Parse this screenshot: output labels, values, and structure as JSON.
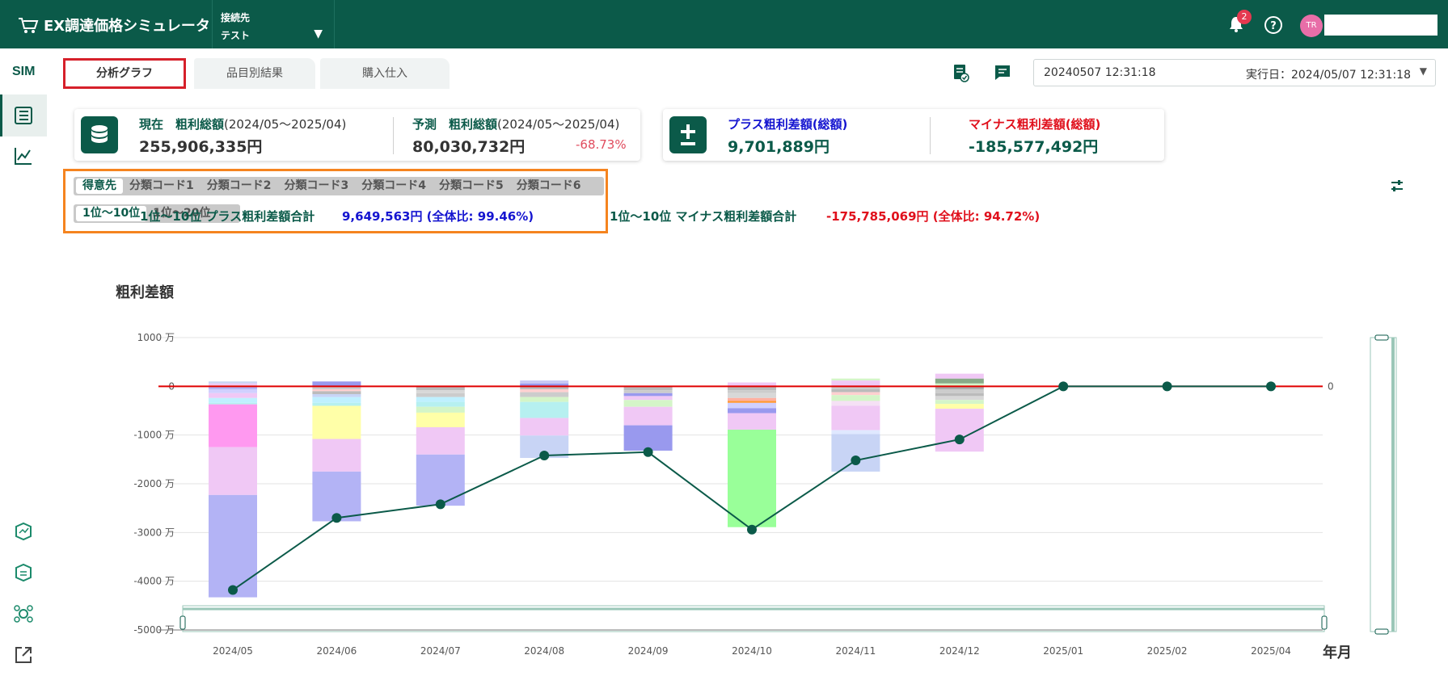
{
  "app": {
    "title": "EX調達価格シミュレータ"
  },
  "connection": {
    "label": "接続先",
    "value": "テスト"
  },
  "header": {
    "notification_count": "2",
    "avatar_initials": "TR"
  },
  "sidebar": {
    "logo": "SIM"
  },
  "tabs": [
    {
      "label": "分析グラフ",
      "active": true
    },
    {
      "label": "品目別結果",
      "active": false
    },
    {
      "label": "購入仕入",
      "active": false
    }
  ],
  "datetime_select": {
    "left": "20240507 12:31:18",
    "right": "実行日：2024/05/07 12:31:18"
  },
  "cards": {
    "current": {
      "label_bold": "現在　粗利総額",
      "label_period": "(2024/05～2025/04)",
      "value": "255,906,335円"
    },
    "forecast": {
      "label_bold": "予測　粗利総額",
      "label_period": "(2024/05～2025/04)",
      "value": "80,030,732円",
      "pct": "-68.73%"
    },
    "plus": {
      "label": "プラス粗利差額(総額)",
      "value": "9,701,889円"
    },
    "minus": {
      "label": "マイナス粗利差額(総額)",
      "value": "-185,577,492円"
    }
  },
  "filter": {
    "groups": [
      "得意先",
      "分類コード1",
      "分類コード2",
      "分類コード3",
      "分類コード4",
      "分類コード5",
      "分類コード6"
    ],
    "ranges": [
      "1位～10位",
      "1位～20位"
    ]
  },
  "summary": {
    "plus_label": "1位～10位 プラス粗利差額合計",
    "plus_value": "9,649,563円 (全体比: 99.46%)",
    "minus_label": "1位～10位 マイナス粗利差額合計",
    "minus_value": "-175,785,069円 (全体比: 94.72%)"
  },
  "chart_data": {
    "type": "bar",
    "ylabel": "粗利差額",
    "xlabel": "年月",
    "ylim": [
      -5000,
      1000
    ],
    "ytick_labels": [
      "1000 万",
      "0",
      "-1000 万",
      "-2000 万",
      "-3000 万",
      "-4000 万",
      "-5000 万"
    ],
    "right_zero_label": "0",
    "categories": [
      "2024/05",
      "2024/06",
      "2024/07",
      "2024/08",
      "2024/09",
      "2024/10",
      "2024/11",
      "2024/12",
      "2025/01",
      "2025/02",
      "2025/04"
    ],
    "stacks": [
      {
        "pos": [
          [
            20,
            "#d4f5c8"
          ],
          [
            40,
            "#f0c8f5"
          ],
          [
            40,
            "#c8d4f5"
          ]
        ],
        "neg": [
          [
            60,
            "#b3b3f5"
          ],
          [
            80,
            "#d0d0ff"
          ],
          [
            100,
            "#f0c8f5"
          ],
          [
            100,
            "#bff0ff"
          ],
          [
            30,
            "#b6f0f0"
          ],
          [
            880,
            "#ff99f0"
          ],
          [
            980,
            "#f0c8f5"
          ],
          [
            2100,
            "#b3b3f5"
          ]
        ]
      },
      {
        "pos": [
          [
            100,
            "#9999ee"
          ]
        ],
        "neg": [
          [
            60,
            "#cccccc"
          ],
          [
            40,
            "#ffd0d0"
          ],
          [
            60,
            "#bbbbbb"
          ],
          [
            60,
            "#c8d4f5"
          ],
          [
            120,
            "#bff0ff"
          ],
          [
            60,
            "#b6f0f0"
          ],
          [
            680,
            "#ffffa8"
          ],
          [
            670,
            "#f0c8f5"
          ],
          [
            1020,
            "#b3b3f5"
          ]
        ]
      },
      {
        "pos": [],
        "neg": [
          [
            80,
            "#bbbbbb"
          ],
          [
            60,
            "#d8d8d8"
          ],
          [
            80,
            "#cccccc"
          ],
          [
            100,
            "#bff0ff"
          ],
          [
            100,
            "#b6f0f0"
          ],
          [
            120,
            "#d4f5c8"
          ],
          [
            300,
            "#ffffa8"
          ],
          [
            560,
            "#f0c8f5"
          ],
          [
            1050,
            "#b3b3f5"
          ]
        ]
      },
      {
        "pos": [
          [
            60,
            "#9999ee"
          ],
          [
            60,
            "#c8c8f5"
          ]
        ],
        "neg": [
          [
            60,
            "#bbbbbb"
          ],
          [
            60,
            "#ffd0d0"
          ],
          [
            100,
            "#cccccc"
          ],
          [
            100,
            "#d4f5c8"
          ],
          [
            330,
            "#b6f0f0"
          ],
          [
            360,
            "#f0c8f5"
          ],
          [
            460,
            "#c8d4f5"
          ]
        ]
      },
      {
        "pos": [],
        "neg": [
          [
            80,
            "#bbbbbb"
          ],
          [
            60,
            "#cccccc"
          ],
          [
            60,
            "#9999ee"
          ],
          [
            80,
            "#f0c8f5"
          ],
          [
            140,
            "#d4f5c8"
          ],
          [
            380,
            "#f0c8f5"
          ],
          [
            520,
            "#9999ee"
          ]
        ]
      },
      {
        "pos": [
          [
            80,
            "#f0c8f5"
          ]
        ],
        "neg": [
          [
            80,
            "#bbbbbb"
          ],
          [
            60,
            "#cccccc"
          ],
          [
            100,
            "#d8d8d8"
          ],
          [
            60,
            "#ffb0a0"
          ],
          [
            40,
            "#ff9933"
          ],
          [
            110,
            "#d0d0ff"
          ],
          [
            100,
            "#9999ee"
          ],
          [
            340,
            "#f0c8f5"
          ],
          [
            2000,
            "#99ff99"
          ]
        ]
      },
      {
        "pos": [
          [
            120,
            "#f0c8f5"
          ],
          [
            40,
            "#d4f5c8"
          ]
        ],
        "neg": [
          [
            60,
            "#cccccc"
          ],
          [
            60,
            "#bbbbbb"
          ],
          [
            60,
            "#ffd0d0"
          ],
          [
            120,
            "#d4f5c8"
          ],
          [
            100,
            "#f5e0f5"
          ],
          [
            500,
            "#f0c8f5"
          ],
          [
            80,
            "#e0e8ff"
          ],
          [
            770,
            "#c8d4f5"
          ]
        ]
      },
      {
        "pos": [
          [
            60,
            "#d4f5c8"
          ],
          [
            100,
            "#88aa88"
          ],
          [
            100,
            "#f0c8f5"
          ]
        ],
        "neg": [
          [
            60,
            "#aaaaaa"
          ],
          [
            80,
            "#cccccc"
          ],
          [
            60,
            "#bbbbbb"
          ],
          [
            80,
            "#d8d8d8"
          ],
          [
            80,
            "#d4f5c8"
          ],
          [
            100,
            "#ffffa8"
          ],
          [
            880,
            "#f0c8f5"
          ]
        ]
      },
      {
        "pos": [],
        "neg": []
      },
      {
        "pos": [],
        "neg": []
      },
      {
        "pos": [],
        "neg": []
      }
    ],
    "series": [
      {
        "name": "",
        "type": "line",
        "values": [
          -4180,
          -2700,
          -2420,
          -1420,
          -1350,
          -2940,
          -1520,
          -1090,
          0,
          0,
          0
        ]
      }
    ]
  }
}
